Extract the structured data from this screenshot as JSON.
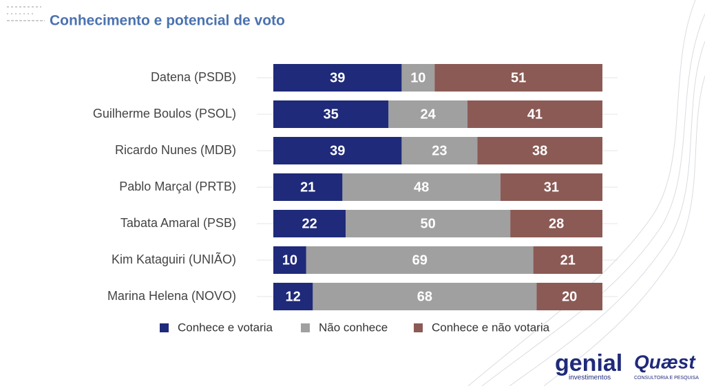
{
  "chart_data": {
    "type": "stacked-bar-horizontal",
    "title": "Conhecimento e potencial de voto",
    "categories": [
      "Datena (PSDB)",
      "Guilherme Boulos (PSOL)",
      "Ricardo Nunes (MDB)",
      "Pablo Marçal (PRTB)",
      "Tabata Amaral (PSB)",
      "Kim Kataguiri (UNIÃO)",
      "Marina Helena (NOVO)"
    ],
    "series": [
      {
        "name": "Conhece e votaria",
        "color": "#1f2a7a",
        "values": [
          39,
          35,
          39,
          21,
          22,
          10,
          12
        ]
      },
      {
        "name": "Não conhece",
        "color": "#a0a0a0",
        "values": [
          10,
          24,
          23,
          48,
          50,
          69,
          68
        ]
      },
      {
        "name": "Conhece e não votaria",
        "color": "#8b5a55",
        "values": [
          51,
          41,
          38,
          31,
          28,
          21,
          20
        ]
      }
    ],
    "legend": "bottom",
    "logos": [
      "genial",
      "investimentos",
      "Quæst",
      "CONSULTORIA E PESQUISA"
    ]
  }
}
